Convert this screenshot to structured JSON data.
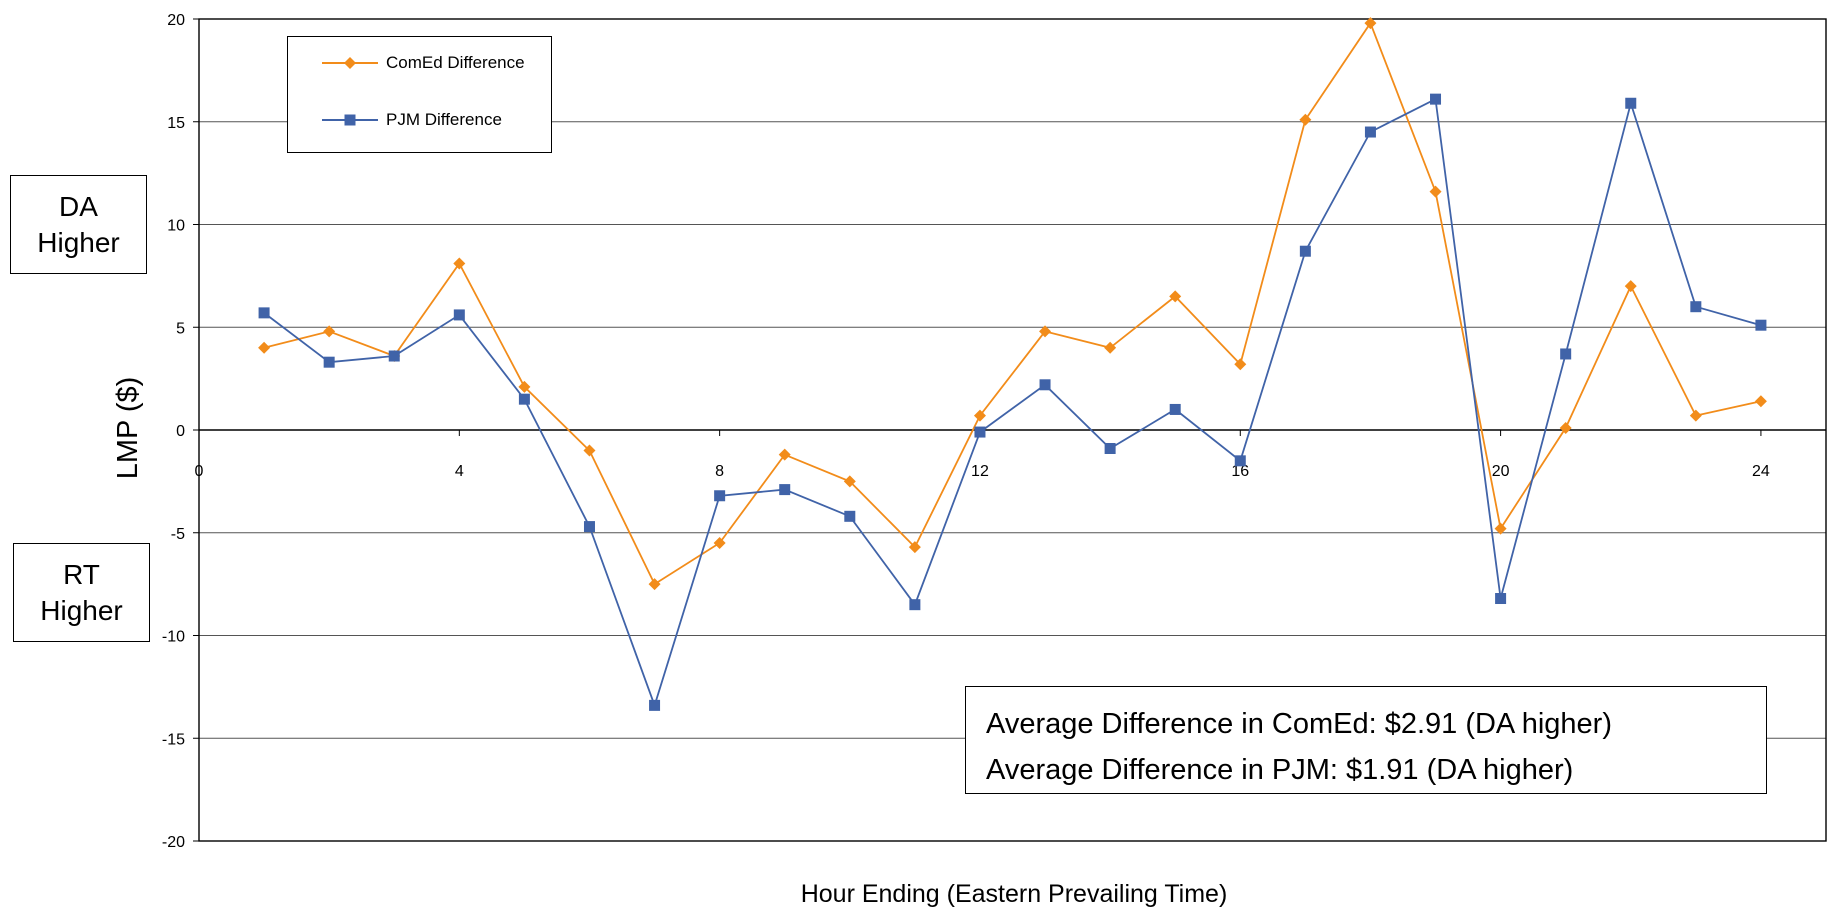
{
  "chart_data": {
    "type": "line",
    "title": "",
    "xlabel": "Hour Ending (Eastern Prevailing Time)",
    "ylabel": "LMP ($)",
    "xlim": [
      0,
      25
    ],
    "ylim": [
      -20,
      20
    ],
    "x_ticks": [
      0,
      4,
      8,
      12,
      16,
      20,
      24
    ],
    "y_ticks": [
      -20,
      -15,
      -10,
      -5,
      0,
      5,
      10,
      15,
      20
    ],
    "grid": "horizontal",
    "legend_position": "top-left",
    "x": [
      1,
      2,
      3,
      4,
      5,
      6,
      7,
      8,
      9,
      10,
      11,
      12,
      13,
      14,
      15,
      16,
      17,
      18,
      19,
      20,
      21,
      22,
      23,
      24
    ],
    "series": [
      {
        "name": "ComEd Difference",
        "color": "#F28C1A",
        "marker": "diamond",
        "values": [
          4.0,
          4.8,
          3.6,
          8.1,
          2.1,
          -1.0,
          -7.5,
          -5.5,
          -1.2,
          -2.5,
          -5.7,
          0.7,
          4.8,
          4.0,
          6.5,
          3.2,
          15.1,
          19.8,
          11.6,
          -4.8,
          0.1,
          7.0,
          0.7,
          1.4
        ]
      },
      {
        "name": "PJM Difference",
        "color": "#4063A8",
        "marker": "square",
        "values": [
          5.7,
          3.3,
          3.6,
          5.6,
          1.5,
          -4.7,
          -13.4,
          -3.2,
          -2.9,
          -4.2,
          -8.5,
          -0.1,
          2.2,
          -0.9,
          1.0,
          -1.5,
          8.7,
          14.5,
          16.1,
          -8.2,
          3.7,
          15.9,
          6.0,
          5.1
        ]
      }
    ],
    "annotations": {
      "da_higher": [
        "DA",
        "Higher"
      ],
      "rt_higher": [
        "RT",
        "Higher"
      ],
      "avg_comed": "Average Difference in ComEd: $2.91 (DA higher)",
      "avg_pjm": "Average Difference in PJM: $1.91 (DA higher)"
    }
  }
}
